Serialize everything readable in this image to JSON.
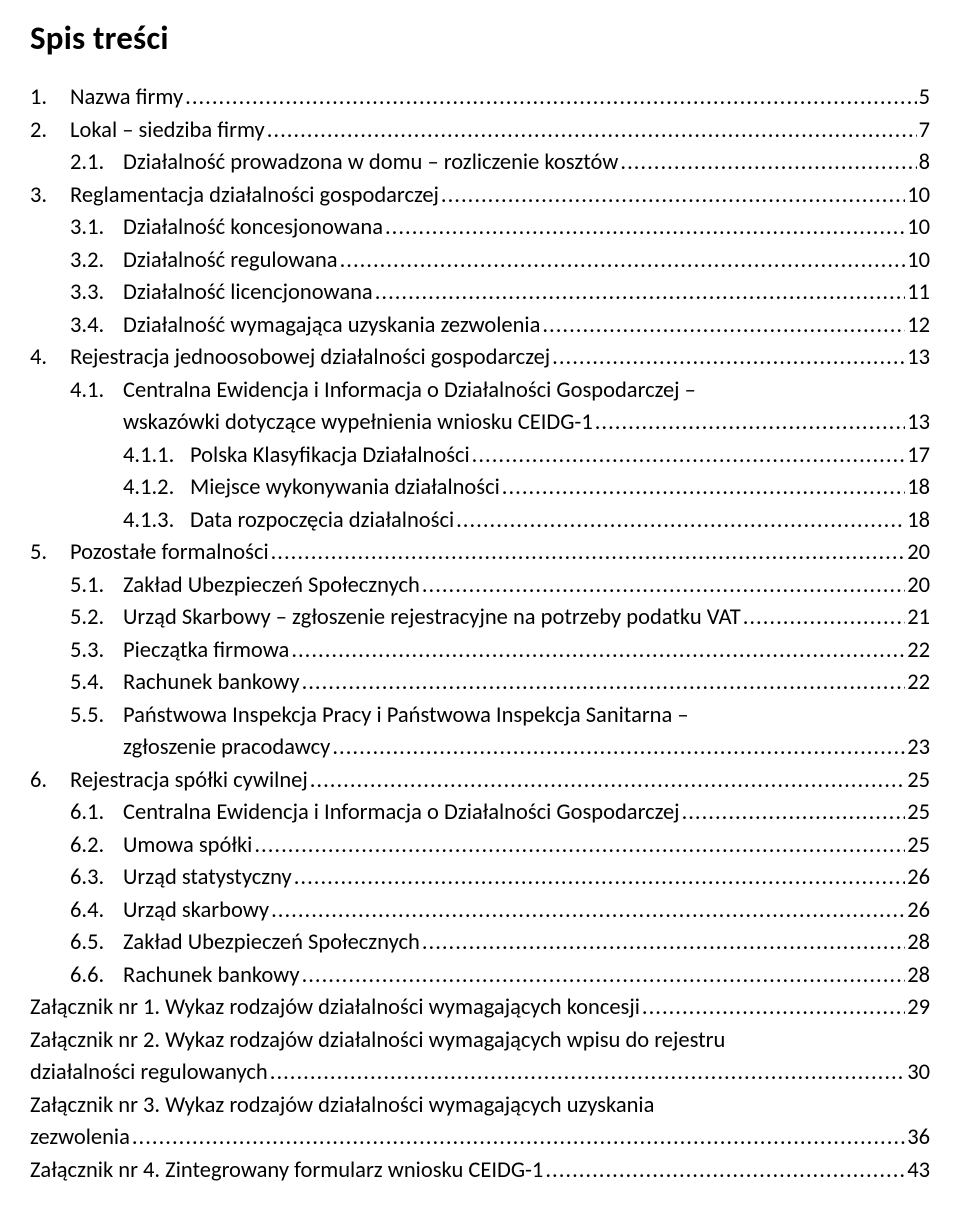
{
  "doc": {
    "title": "Spis treści",
    "title_fontsize": 33,
    "body_fontsize": 22.5,
    "text_color": "#000000",
    "background_color": "#ffffff",
    "font_family": "Calibri"
  },
  "entries": [
    {
      "level": 1,
      "num": "1.",
      "label": "Nazwa firmy",
      "page": "5"
    },
    {
      "level": 1,
      "num": "2.",
      "label": "Lokal – siedziba firmy",
      "page": "7"
    },
    {
      "level": 2,
      "num": "2.1.",
      "label": "Działalność prowadzona w domu – rozliczenie kosztów",
      "page": "8"
    },
    {
      "level": 1,
      "num": "3.",
      "label": "Reglamentacja działalności gospodarczej",
      "page": "10"
    },
    {
      "level": 2,
      "num": "3.1.",
      "label": "Działalność koncesjonowana",
      "page": "10"
    },
    {
      "level": 2,
      "num": "3.2.",
      "label": "Działalność regulowana",
      "page": "10"
    },
    {
      "level": 2,
      "num": "3.3.",
      "label": "Działalność licencjonowana",
      "page": "11"
    },
    {
      "level": 2,
      "num": "3.4.",
      "label": "Działalność wymagająca uzyskania zezwolenia",
      "page": "12"
    },
    {
      "level": 1,
      "num": "4.",
      "label": "Rejestracja jednoosobowej działalności gospodarczej",
      "page": "13"
    },
    {
      "level": 2,
      "num": "4.1.",
      "label": "Centralna Ewidencja i Informacja o Działalności Gospodarczej –",
      "page": null,
      "continuation": {
        "label": "wskazówki dotyczące wypełnienia wniosku CEIDG-1",
        "page": "13"
      }
    },
    {
      "level": 3,
      "num": "4.1.1.",
      "label": "Polska Klasyfikacja Działalności",
      "page": "17"
    },
    {
      "level": 3,
      "num": "4.1.2.",
      "label": "Miejsce wykonywania działalności",
      "page": "18"
    },
    {
      "level": 3,
      "num": "4.1.3.",
      "label": "Data rozpoczęcia działalności",
      "page": "18"
    },
    {
      "level": 1,
      "num": "5.",
      "label": "Pozostałe formalności",
      "page": "20"
    },
    {
      "level": 2,
      "num": "5.1.",
      "label": "Zakład Ubezpieczeń Społecznych",
      "page": "20"
    },
    {
      "level": 2,
      "num": "5.2.",
      "label": "Urząd Skarbowy – zgłoszenie rejestracyjne na potrzeby podatku VAT",
      "page": "21"
    },
    {
      "level": 2,
      "num": "5.3.",
      "label": "Pieczątka firmowa",
      "page": "22"
    },
    {
      "level": 2,
      "num": "5.4.",
      "label": "Rachunek bankowy",
      "page": "22"
    },
    {
      "level": 2,
      "num": "5.5.",
      "label": "Państwowa Inspekcja Pracy i Państwowa Inspekcja Sanitarna –",
      "page": null,
      "continuation": {
        "label": "zgłoszenie pracodawcy",
        "page": "23"
      }
    },
    {
      "level": 1,
      "num": "6.",
      "label": "Rejestracja spółki cywilnej",
      "page": "25"
    },
    {
      "level": 2,
      "num": "6.1.",
      "label": "Centralna Ewidencja i Informacja o Działalności Gospodarczej",
      "page": "25"
    },
    {
      "level": 2,
      "num": "6.2.",
      "label": "Umowa spółki",
      "page": "25"
    },
    {
      "level": 2,
      "num": "6.3.",
      "label": "Urząd statystyczny",
      "page": "26"
    },
    {
      "level": 2,
      "num": "6.4.",
      "label": "Urząd skarbowy",
      "page": "26"
    },
    {
      "level": 2,
      "num": "6.5.",
      "label": "Zakład Ubezpieczeń Społecznych",
      "page": "28"
    },
    {
      "level": 2,
      "num": "6.6.",
      "label": "Rachunek bankowy",
      "page": "28"
    },
    {
      "level": 0,
      "num": "",
      "label": "Załącznik nr 1. Wykaz rodzajów działalności wymagających koncesji",
      "page": "29"
    },
    {
      "level": 0,
      "num": "",
      "label": "Załącznik nr 2. Wykaz rodzajów działalności wymagających wpisu do rejestru",
      "page": null,
      "continuation_flat": {
        "label": "działalności regulowanych",
        "page": "30"
      }
    },
    {
      "level": 0,
      "num": "",
      "label": "Załącznik nr 3. Wykaz rodzajów działalności wymagających uzyskania",
      "page": null,
      "continuation_flat": {
        "label": "zezwolenia",
        "page": "36"
      }
    },
    {
      "level": 0,
      "num": "",
      "label": "Załącznik nr 4. Zintegrowany formularz wniosku CEIDG-1",
      "page": "43"
    }
  ]
}
